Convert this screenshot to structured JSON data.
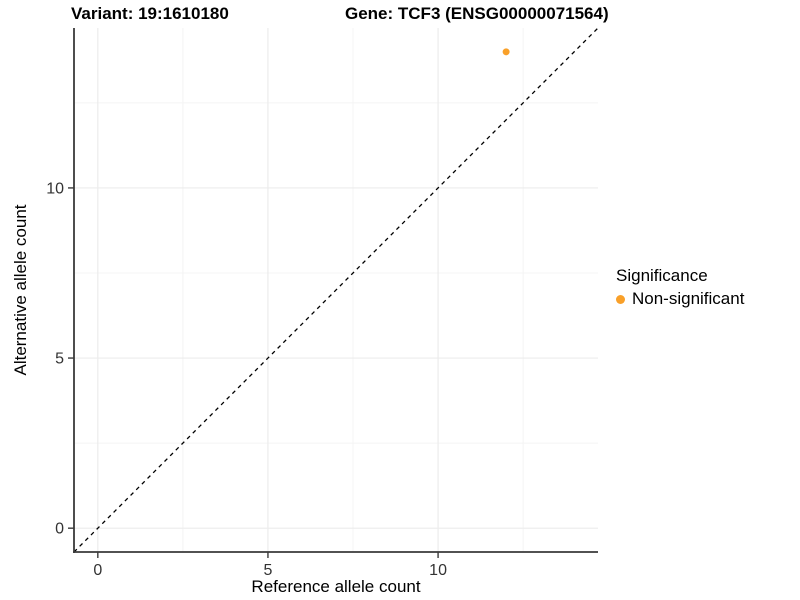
{
  "header": {
    "variant_title": "Variant: 19:1610180",
    "gene_title": "Gene: TCF3 (ENSG00000071564)"
  },
  "chart_data": {
    "type": "scatter",
    "title_left": "Variant: 19:1610180",
    "title_right": "Gene: TCF3 (ENSG00000071564)",
    "xlabel": "Reference allele count",
    "ylabel": "Alternative allele count",
    "xlim": [
      -0.7,
      14.7
    ],
    "ylim": [
      -0.7,
      14.7
    ],
    "x_ticks": [
      0,
      5,
      10
    ],
    "y_ticks": [
      0,
      5,
      10
    ],
    "x_minor_ticks": [
      2.5,
      7.5,
      12.5
    ],
    "y_minor_ticks": [
      2.5,
      7.5,
      12.5
    ],
    "grid": true,
    "identity_line": {
      "style": "dashed",
      "from": [
        -0.7,
        -0.7
      ],
      "to": [
        14.7,
        14.7
      ],
      "color": "#000000"
    },
    "series": [
      {
        "name": "Non-significant",
        "color": "#F9A029",
        "points": [
          {
            "x": 12,
            "y": 14
          }
        ]
      }
    ],
    "legend": {
      "position": "right",
      "title": "Significance",
      "entries": [
        {
          "label": "Non-significant",
          "color": "#F9A029"
        }
      ]
    },
    "colors": {
      "background": "#FFFFFF",
      "grid_major": "#ECECEC",
      "grid_minor": "#F4F4F4",
      "axis_line": "#3A3A3A",
      "tick_mark": "#3A3A3A",
      "tick_label": "#333333",
      "point": "#F9A029"
    }
  }
}
